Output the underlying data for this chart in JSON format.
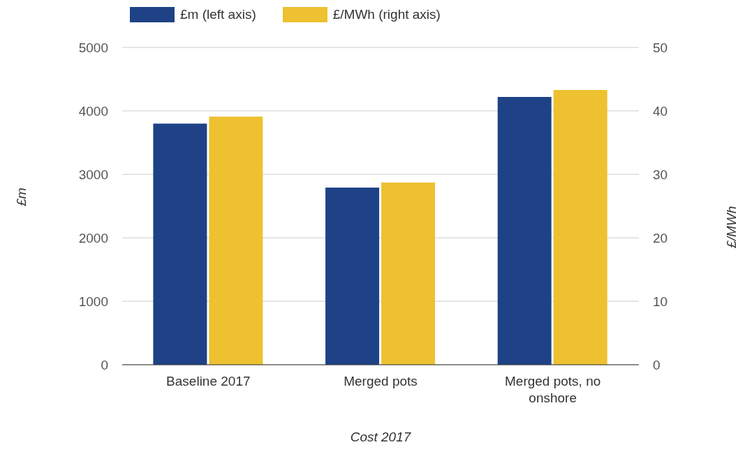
{
  "chart_data": {
    "type": "bar",
    "xlabel": "Cost 2017",
    "ylabel": "£m",
    "y2label": "£/MWh",
    "categories": [
      "Baseline 2017",
      "Merged pots",
      "Merged pots, no onshore"
    ],
    "series": [
      {
        "name": "£m (left axis)",
        "color": "#1f4287",
        "values": [
          3800,
          2790,
          4220
        ]
      },
      {
        "name": "£/MWh (right axis)",
        "color": "#edc130",
        "values": [
          39.1,
          28.7,
          43.3
        ],
        "axis": "y2"
      }
    ],
    "ylim": [
      0,
      5000
    ],
    "yticks": [
      0,
      1000,
      2000,
      3000,
      4000,
      5000
    ],
    "y2lim": [
      0,
      50
    ],
    "y2ticks": [
      0,
      10,
      20,
      30,
      40,
      50
    ],
    "grid": "y",
    "legend": "top left"
  }
}
